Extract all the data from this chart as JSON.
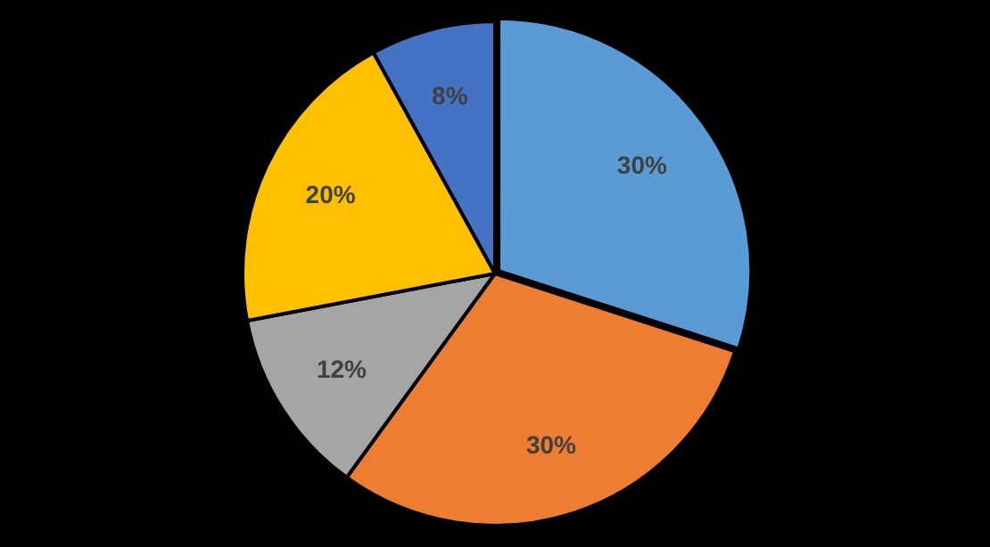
{
  "chart_data": {
    "type": "pie",
    "categories": [
      null,
      null,
      null,
      null,
      null
    ],
    "values": [
      30,
      30,
      12,
      20,
      8
    ],
    "colors": [
      "#5b9bd5",
      "#ed7d31",
      "#a5a5a5",
      "#ffc000",
      "#4472c4"
    ],
    "value_labels": [
      "30%",
      "30%",
      "12%",
      "20%",
      "8%"
    ],
    "legend": false
  }
}
